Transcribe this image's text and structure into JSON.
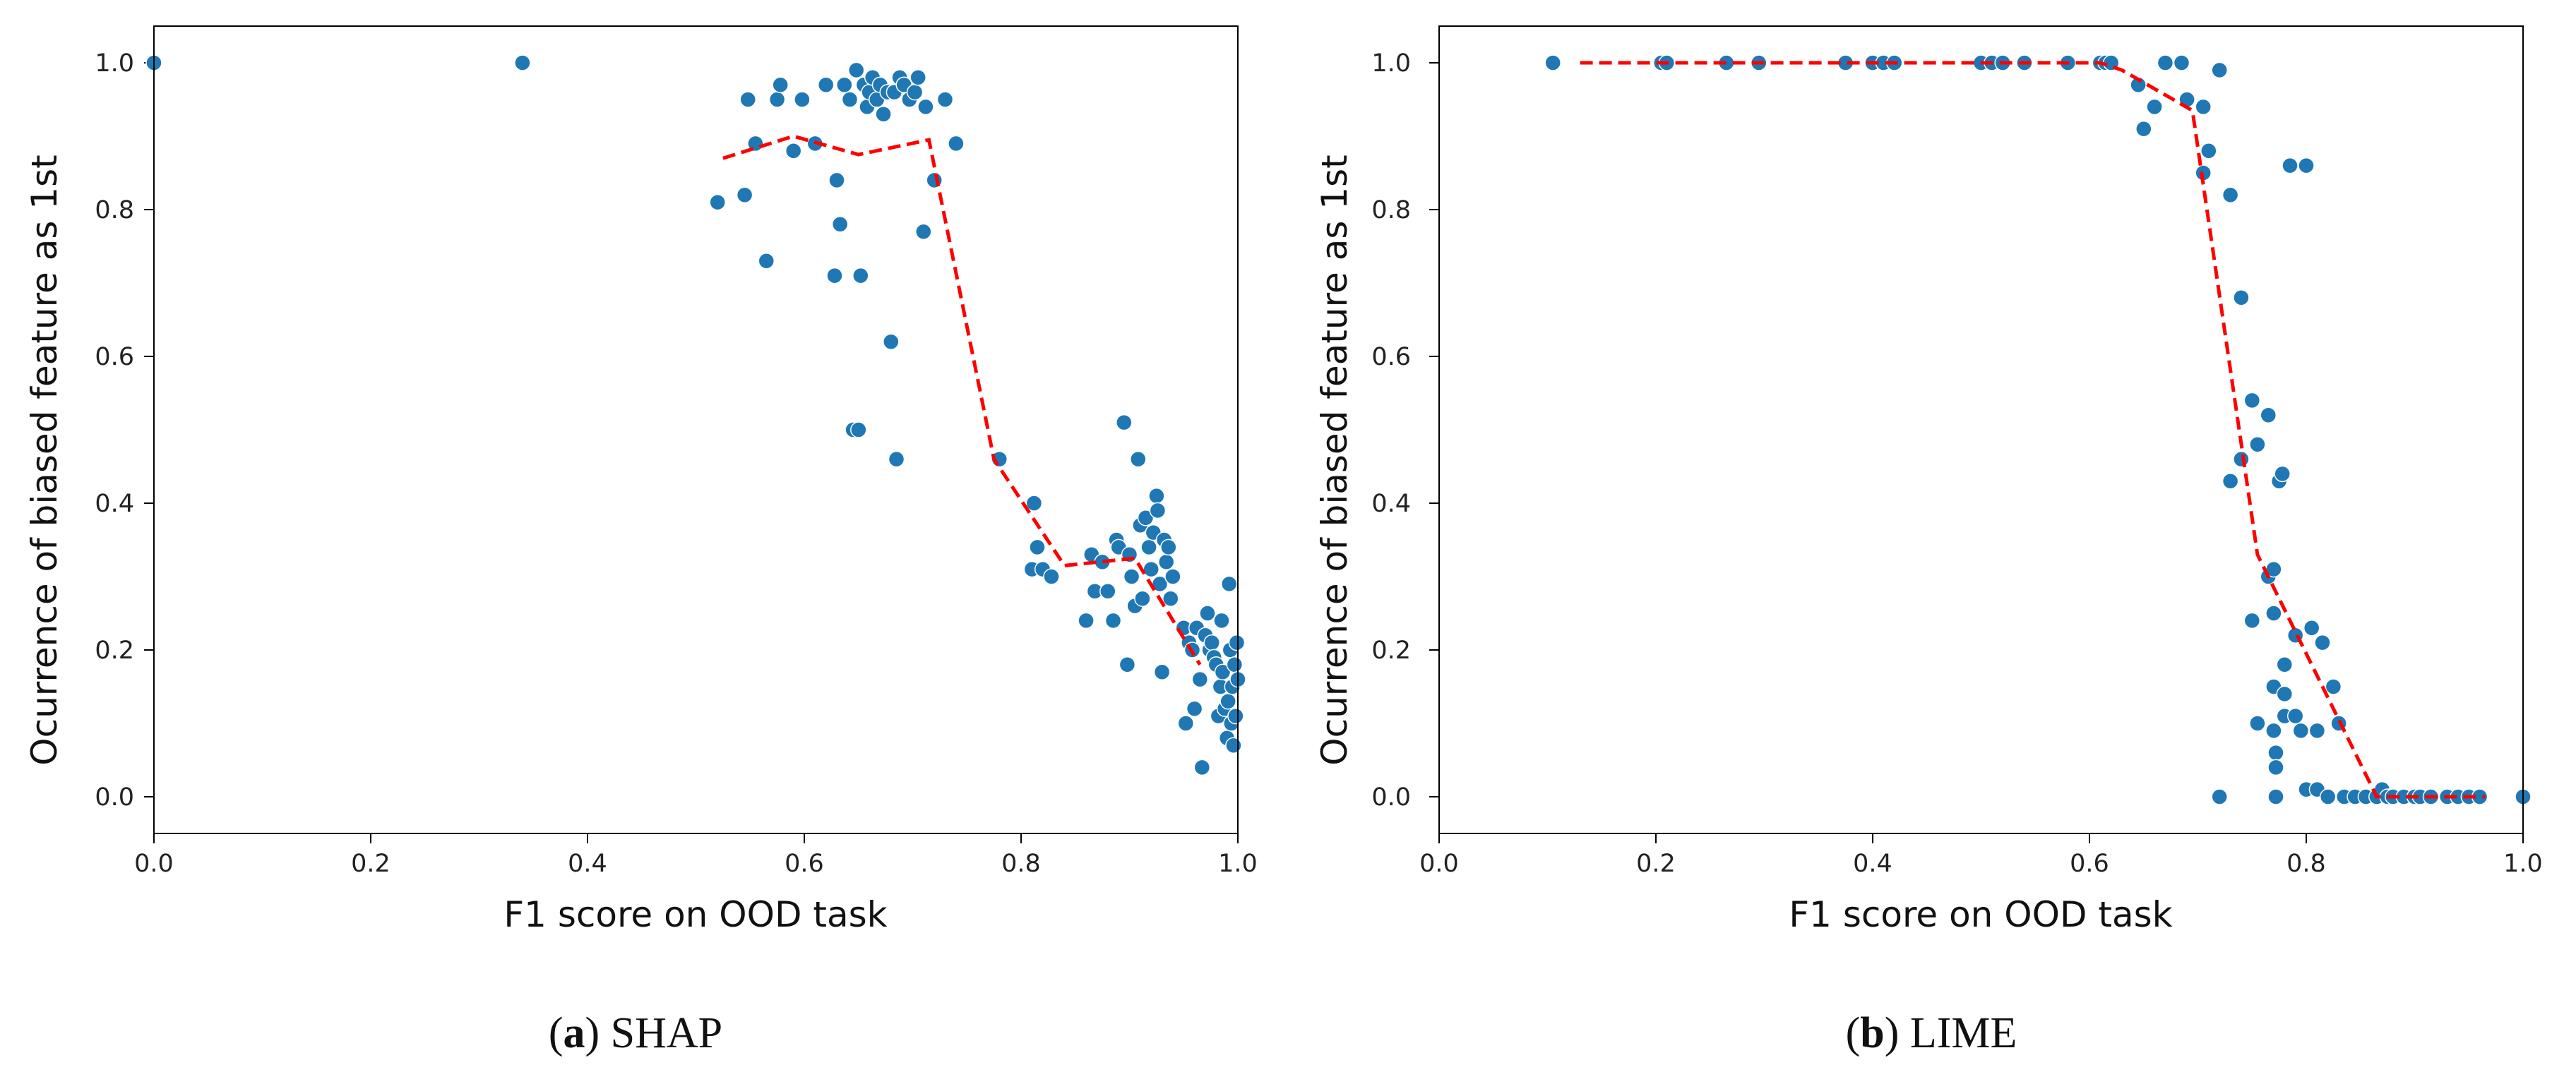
{
  "chart_data": [
    {
      "type": "scatter",
      "caption_letter": "a",
      "caption_text": "SHAP",
      "xlabel": "F1 score on OOD task",
      "ylabel": "Ocurrence of biased feature as 1st",
      "xlim": [
        0.0,
        1.0
      ],
      "ylim": [
        -0.05,
        1.05
      ],
      "xticks": [
        0.0,
        0.2,
        0.4,
        0.6,
        0.8,
        1.0
      ],
      "yticks": [
        0.0,
        0.2,
        0.4,
        0.6,
        0.8,
        1.0
      ],
      "xtick_labels": [
        "0.0",
        "0.2",
        "0.4",
        "0.6",
        "0.8",
        "1.0"
      ],
      "ytick_labels": [
        "0.0",
        "0.2",
        "0.4",
        "0.6",
        "0.8",
        "1.0"
      ],
      "point_color": "#1f77b4",
      "trend_color": "#ff0000",
      "points": [
        [
          0.0,
          1.0
        ],
        [
          0.34,
          1.0
        ],
        [
          0.52,
          0.81
        ],
        [
          0.545,
          0.82
        ],
        [
          0.548,
          0.95
        ],
        [
          0.555,
          0.89
        ],
        [
          0.565,
          0.73
        ],
        [
          0.575,
          0.95
        ],
        [
          0.578,
          0.97
        ],
        [
          0.59,
          0.88
        ],
        [
          0.598,
          0.95
        ],
        [
          0.61,
          0.89
        ],
        [
          0.62,
          0.97
        ],
        [
          0.628,
          0.71
        ],
        [
          0.63,
          0.84
        ],
        [
          0.633,
          0.78
        ],
        [
          0.637,
          0.97
        ],
        [
          0.642,
          0.95
        ],
        [
          0.645,
          0.5
        ],
        [
          0.648,
          0.99
        ],
        [
          0.65,
          0.5
        ],
        [
          0.652,
          0.71
        ],
        [
          0.655,
          0.97
        ],
        [
          0.658,
          0.94
        ],
        [
          0.66,
          0.96
        ],
        [
          0.663,
          0.98
        ],
        [
          0.667,
          0.95
        ],
        [
          0.67,
          0.97
        ],
        [
          0.673,
          0.93
        ],
        [
          0.677,
          0.96
        ],
        [
          0.68,
          0.62
        ],
        [
          0.683,
          0.96
        ],
        [
          0.685,
          0.46
        ],
        [
          0.688,
          0.98
        ],
        [
          0.692,
          0.97
        ],
        [
          0.697,
          0.95
        ],
        [
          0.702,
          0.96
        ],
        [
          0.705,
          0.98
        ],
        [
          0.71,
          0.77
        ],
        [
          0.712,
          0.94
        ],
        [
          0.72,
          0.84
        ],
        [
          0.73,
          0.95
        ],
        [
          0.74,
          0.89
        ],
        [
          0.78,
          0.46
        ],
        [
          0.81,
          0.31
        ],
        [
          0.812,
          0.4
        ],
        [
          0.815,
          0.34
        ],
        [
          0.82,
          0.31
        ],
        [
          0.828,
          0.3
        ],
        [
          0.86,
          0.24
        ],
        [
          0.865,
          0.33
        ],
        [
          0.868,
          0.28
        ],
        [
          0.875,
          0.32
        ],
        [
          0.88,
          0.28
        ],
        [
          0.885,
          0.24
        ],
        [
          0.888,
          0.35
        ],
        [
          0.89,
          0.34
        ],
        [
          0.895,
          0.51
        ],
        [
          0.898,
          0.18
        ],
        [
          0.9,
          0.33
        ],
        [
          0.902,
          0.3
        ],
        [
          0.905,
          0.26
        ],
        [
          0.908,
          0.46
        ],
        [
          0.91,
          0.37
        ],
        [
          0.912,
          0.27
        ],
        [
          0.915,
          0.38
        ],
        [
          0.918,
          0.34
        ],
        [
          0.92,
          0.31
        ],
        [
          0.922,
          0.36
        ],
        [
          0.925,
          0.41
        ],
        [
          0.926,
          0.39
        ],
        [
          0.928,
          0.29
        ],
        [
          0.93,
          0.17
        ],
        [
          0.932,
          0.35
        ],
        [
          0.934,
          0.32
        ],
        [
          0.936,
          0.34
        ],
        [
          0.938,
          0.27
        ],
        [
          0.94,
          0.3
        ],
        [
          0.95,
          0.23
        ],
        [
          0.952,
          0.1
        ],
        [
          0.955,
          0.21
        ],
        [
          0.958,
          0.2
        ],
        [
          0.96,
          0.12
        ],
        [
          0.962,
          0.23
        ],
        [
          0.965,
          0.16
        ],
        [
          0.967,
          0.04
        ],
        [
          0.97,
          0.22
        ],
        [
          0.972,
          0.25
        ],
        [
          0.974,
          0.2
        ],
        [
          0.976,
          0.21
        ],
        [
          0.978,
          0.19
        ],
        [
          0.98,
          0.18
        ],
        [
          0.982,
          0.11
        ],
        [
          0.984,
          0.15
        ],
        [
          0.985,
          0.24
        ],
        [
          0.986,
          0.17
        ],
        [
          0.988,
          0.12
        ],
        [
          0.99,
          0.08
        ],
        [
          0.991,
          0.13
        ],
        [
          0.992,
          0.29
        ],
        [
          0.993,
          0.2
        ],
        [
          0.994,
          0.1
        ],
        [
          0.995,
          0.15
        ],
        [
          0.996,
          0.07
        ],
        [
          0.997,
          0.18
        ],
        [
          0.998,
          0.11
        ],
        [
          0.999,
          0.21
        ],
        [
          1.0,
          0.16
        ]
      ],
      "trend": [
        [
          0.525,
          0.87
        ],
        [
          0.59,
          0.9
        ],
        [
          0.65,
          0.875
        ],
        [
          0.715,
          0.895
        ],
        [
          0.775,
          0.46
        ],
        [
          0.84,
          0.315
        ],
        [
          0.905,
          0.325
        ],
        [
          0.965,
          0.18
        ]
      ]
    },
    {
      "type": "scatter",
      "caption_letter": "b",
      "caption_text": "LIME",
      "xlabel": "F1 score on OOD task",
      "ylabel": "Ocurrence of biased feature as 1st",
      "xlim": [
        0.0,
        1.0
      ],
      "ylim": [
        -0.05,
        1.05
      ],
      "xticks": [
        0.0,
        0.2,
        0.4,
        0.6,
        0.8,
        1.0
      ],
      "yticks": [
        0.0,
        0.2,
        0.4,
        0.6,
        0.8,
        1.0
      ],
      "xtick_labels": [
        "0.0",
        "0.2",
        "0.4",
        "0.6",
        "0.8",
        "1.0"
      ],
      "ytick_labels": [
        "0.0",
        "0.2",
        "0.4",
        "0.6",
        "0.8",
        "1.0"
      ],
      "point_color": "#1f77b4",
      "trend_color": "#ff0000",
      "points": [
        [
          0.105,
          1.0
        ],
        [
          0.205,
          1.0
        ],
        [
          0.21,
          1.0
        ],
        [
          0.265,
          1.0
        ],
        [
          0.295,
          1.0
        ],
        [
          0.375,
          1.0
        ],
        [
          0.4,
          1.0
        ],
        [
          0.41,
          1.0
        ],
        [
          0.42,
          1.0
        ],
        [
          0.5,
          1.0
        ],
        [
          0.51,
          1.0
        ],
        [
          0.52,
          1.0
        ],
        [
          0.54,
          1.0
        ],
        [
          0.58,
          1.0
        ],
        [
          0.61,
          1.0
        ],
        [
          0.615,
          1.0
        ],
        [
          0.62,
          1.0
        ],
        [
          0.645,
          0.97
        ],
        [
          0.65,
          0.91
        ],
        [
          0.66,
          0.94
        ],
        [
          0.67,
          1.0
        ],
        [
          0.685,
          1.0
        ],
        [
          0.69,
          0.95
        ],
        [
          0.705,
          0.94
        ],
        [
          0.705,
          0.85
        ],
        [
          0.71,
          0.88
        ],
        [
          0.72,
          0.99
        ],
        [
          0.72,
          0.0
        ],
        [
          0.73,
          0.82
        ],
        [
          0.73,
          0.43
        ],
        [
          0.74,
          0.68
        ],
        [
          0.74,
          0.46
        ],
        [
          0.75,
          0.54
        ],
        [
          0.75,
          0.24
        ],
        [
          0.755,
          0.48
        ],
        [
          0.755,
          0.1
        ],
        [
          0.765,
          0.52
        ],
        [
          0.765,
          0.3
        ],
        [
          0.77,
          0.31
        ],
        [
          0.77,
          0.25
        ],
        [
          0.77,
          0.15
        ],
        [
          0.77,
          0.09
        ],
        [
          0.772,
          0.06
        ],
        [
          0.772,
          0.04
        ],
        [
          0.772,
          0.0
        ],
        [
          0.775,
          0.43
        ],
        [
          0.778,
          0.44
        ],
        [
          0.78,
          0.18
        ],
        [
          0.78,
          0.14
        ],
        [
          0.78,
          0.11
        ],
        [
          0.785,
          0.86
        ],
        [
          0.79,
          0.22
        ],
        [
          0.79,
          0.11
        ],
        [
          0.795,
          0.09
        ],
        [
          0.8,
          0.86
        ],
        [
          0.8,
          0.01
        ],
        [
          0.805,
          0.23
        ],
        [
          0.81,
          0.09
        ],
        [
          0.81,
          0.01
        ],
        [
          0.815,
          0.21
        ],
        [
          0.82,
          0.0
        ],
        [
          0.825,
          0.15
        ],
        [
          0.83,
          0.1
        ],
        [
          0.835,
          0.0
        ],
        [
          0.845,
          0.0
        ],
        [
          0.855,
          0.0
        ],
        [
          0.865,
          0.0
        ],
        [
          0.87,
          0.01
        ],
        [
          0.875,
          0.0
        ],
        [
          0.88,
          0.0
        ],
        [
          0.89,
          0.0
        ],
        [
          0.9,
          0.0
        ],
        [
          0.905,
          0.0
        ],
        [
          0.915,
          0.0
        ],
        [
          0.93,
          0.0
        ],
        [
          0.94,
          0.0
        ],
        [
          0.95,
          0.0
        ],
        [
          0.96,
          0.0
        ],
        [
          1.0,
          0.0
        ]
      ],
      "trend": [
        [
          0.13,
          1.0
        ],
        [
          0.61,
          1.0
        ],
        [
          0.63,
          0.99
        ],
        [
          0.695,
          0.935
        ],
        [
          0.755,
          0.33
        ],
        [
          0.865,
          0.0
        ],
        [
          0.965,
          0.0
        ]
      ]
    }
  ]
}
